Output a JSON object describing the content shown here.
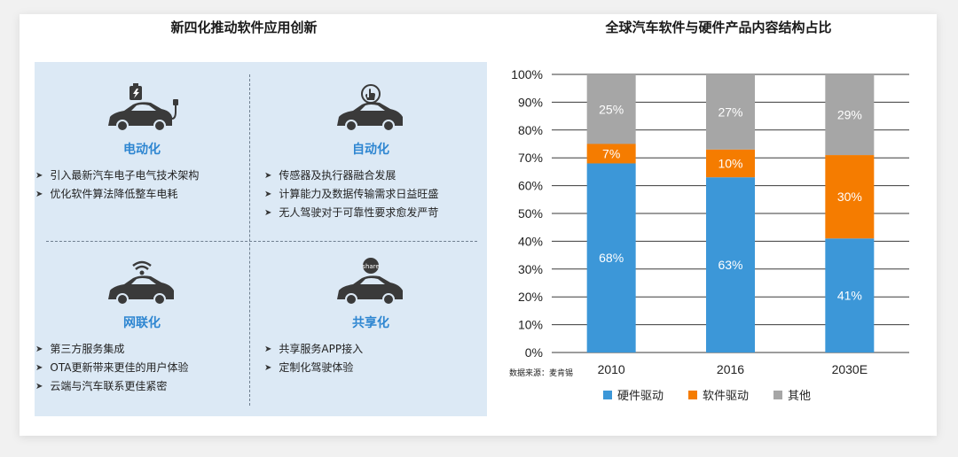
{
  "left": {
    "title": "新四化推动软件应用创新",
    "quadrants": [
      {
        "title": "电动化",
        "items": [
          "引入最新汽车电子电气技术架构",
          "优化软件算法降低整车电耗"
        ]
      },
      {
        "title": "自动化",
        "items": [
          "传感器及执行器融合发展",
          "计算能力及数据传输需求日益旺盛",
          "无人驾驶对于可靠性要求愈发严苛"
        ]
      },
      {
        "title": "网联化",
        "items": [
          "第三方服务集成",
          "OTA更新带来更佳的用户体验",
          "云端与汽车联系更佳紧密"
        ]
      },
      {
        "title": "共享化",
        "items": [
          "共享服务APP接入",
          "定制化驾驶体验"
        ]
      }
    ],
    "share_badge": "share"
  },
  "chart_data": {
    "type": "bar",
    "stacked": true,
    "title": "全球汽车软件与硬件产品内容结构占比",
    "categories": [
      "2010",
      "2016",
      "2030E"
    ],
    "series": [
      {
        "name": "硬件驱动",
        "values": [
          68,
          63,
          41
        ],
        "labels": [
          "68%",
          "63%",
          "41%"
        ],
        "color": "#3c97d8"
      },
      {
        "name": "软件驱动",
        "values": [
          7,
          10,
          30
        ],
        "labels": [
          "7%",
          "10%",
          "30%"
        ],
        "color": "#f57c00"
      },
      {
        "name": "其他",
        "values": [
          25,
          27,
          29
        ],
        "labels": [
          "25%",
          "27%",
          "29%"
        ],
        "color": "#a6a6a6"
      }
    ],
    "ylim": [
      0,
      100
    ],
    "yticks": [
      "0%",
      "10%",
      "20%",
      "30%",
      "40%",
      "50%",
      "60%",
      "70%",
      "80%",
      "90%",
      "100%"
    ],
    "grid": true,
    "legend_position": "bottom"
  },
  "source": "数据来源：麦肯锡"
}
